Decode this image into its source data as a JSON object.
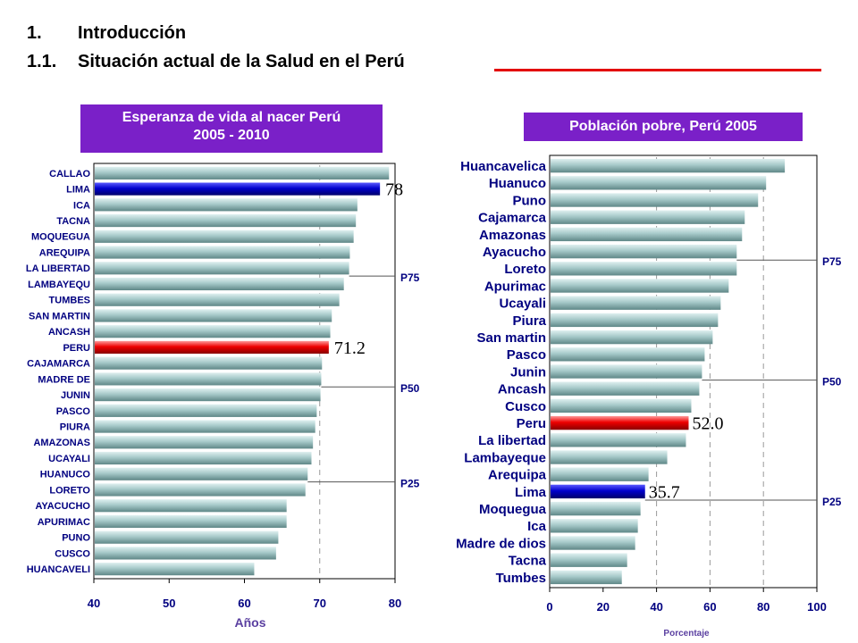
{
  "headings": {
    "h1_num": "1.",
    "h1_text": "Introducción",
    "h2_num": "1.1.",
    "h2_text": "Situación actual de la Salud en el Perú"
  },
  "colors": {
    "title_box": "#7a20c8",
    "bar_default": "#8fb8b8",
    "highlight_blue": "#0000cc",
    "highlight_red": "#ee0000",
    "label_color": "#000080",
    "rule_red": "#e30000"
  },
  "chart_data": [
    {
      "type": "bar",
      "orientation": "horizontal",
      "title": "Esperanza de vida al nacer Perú",
      "subtitle": "2005 - 2010",
      "xlabel": "Años",
      "xlim": [
        40,
        80
      ],
      "xticks": [
        "40",
        "50",
        "60",
        "70",
        "80"
      ],
      "gridlines_x": [
        70
      ],
      "categories": [
        "CALLAO",
        "LIMA",
        "ICA",
        "TACNA",
        "MOQUEGUA",
        "AREQUIPA",
        "LA LIBERTAD",
        "LAMBAYEQU",
        "TUMBES",
        "SAN MARTIN",
        "ANCASH",
        "PERU",
        "CAJAMARCA",
        "MADRE DE",
        "JUNIN",
        "PASCO",
        "PIURA",
        "AMAZONAS",
        "UCAYALI",
        "HUANUCO",
        "LORETO",
        "AYACUCHO",
        "APURIMAC",
        "PUNO",
        "CUSCO",
        "HUANCAVELI"
      ],
      "values": [
        79.2,
        78.0,
        75.0,
        74.8,
        74.5,
        74.0,
        73.9,
        73.2,
        72.6,
        71.6,
        71.4,
        71.2,
        70.3,
        70.2,
        70.1,
        69.6,
        69.4,
        69.1,
        68.9,
        68.4,
        68.1,
        65.6,
        65.6,
        64.5,
        64.2,
        61.3
      ],
      "highlights": {
        "LIMA": "blue",
        "PERU": "red"
      },
      "value_labels": {
        "LIMA": "78",
        "PERU": "71.2"
      },
      "percentile_markers": [
        {
          "label": "P75",
          "value": 73.9
        },
        {
          "label": "P50",
          "value": 70.2
        },
        {
          "label": "P25",
          "value": 68.4
        }
      ]
    },
    {
      "type": "bar",
      "orientation": "horizontal",
      "title": "Población pobre, Perú 2005",
      "xlabel": "Porcentaje",
      "xlim": [
        0,
        100
      ],
      "xticks": [
        "0",
        "20",
        "40",
        "60",
        "80",
        "100"
      ],
      "gridlines_x": [
        40,
        60,
        80
      ],
      "categories": [
        "Huancavelica",
        "Huanuco",
        "Puno",
        "Cajamarca",
        "Amazonas",
        "Ayacucho",
        "Loreto",
        "Apurimac",
        "Ucayali",
        "Piura",
        "San martin",
        "Pasco",
        "Junin",
        "Ancash",
        "Cusco",
        "Peru",
        "La libertad",
        "Lambayeque",
        "Arequipa",
        "Lima",
        "Moquegua",
        "Ica",
        "Madre de dios",
        "Tacna",
        "Tumbes"
      ],
      "values": [
        88.0,
        81.0,
        78.0,
        73.0,
        72.0,
        70.0,
        70.0,
        67.0,
        64.0,
        63.0,
        61.0,
        58.0,
        57.0,
        56.0,
        53.0,
        52.0,
        51.0,
        44.0,
        37.0,
        35.7,
        34.0,
        33.0,
        32.0,
        29.0,
        27.0
      ],
      "highlights": {
        "Peru": "red",
        "Lima": "blue"
      },
      "value_labels": {
        "Peru": "52.0",
        "Lima": "35.7"
      },
      "percentile_markers": [
        {
          "label": "P75",
          "value": 70.0
        },
        {
          "label": "P50",
          "value": 57.0
        },
        {
          "label": "P25",
          "value": 35.7
        }
      ]
    }
  ]
}
